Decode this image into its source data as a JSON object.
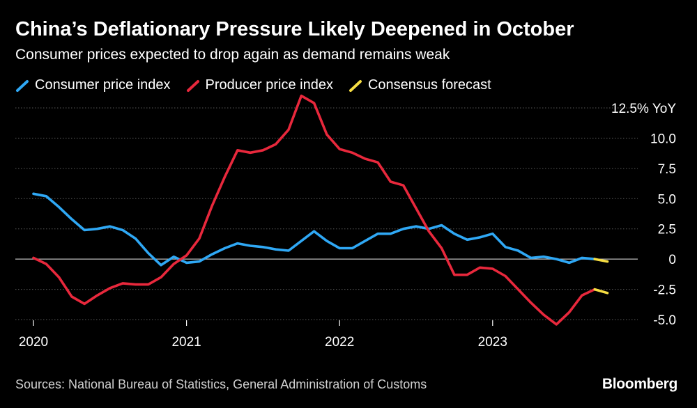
{
  "header": {
    "title": "China’s Deflationary Pressure Likely Deepened in October",
    "subtitle": "Consumer prices expected to drop again as demand remains weak"
  },
  "legend": [
    {
      "label": "Consumer price index",
      "color": "#2fa8f5"
    },
    {
      "label": "Producer price index",
      "color": "#e8283c"
    },
    {
      "label": "Consensus forecast",
      "color": "#f6dd43"
    }
  ],
  "footer": {
    "source": "Sources: National Bureau of Statistics, General Administration of Customs",
    "brand": "Bloomberg"
  },
  "chart_data": {
    "type": "line",
    "title": "China’s Deflationary Pressure Likely Deepened in October",
    "xlabel": "",
    "ylabel": "YoY",
    "ylim": [
      -5.0,
      12.5
    ],
    "yticks": [
      {
        "value": 12.5,
        "label": "12.5% YoY"
      },
      {
        "value": 10.0,
        "label": "10.0"
      },
      {
        "value": 7.5,
        "label": "7.5"
      },
      {
        "value": 5.0,
        "label": "5.0"
      },
      {
        "value": 2.5,
        "label": "2.5"
      },
      {
        "value": 0,
        "label": "0"
      },
      {
        "value": -2.5,
        "label": "-2.5"
      },
      {
        "value": -5.0,
        "label": "-5.0"
      }
    ],
    "xticks": [
      {
        "index": 0,
        "label": "2020"
      },
      {
        "index": 12,
        "label": "2021"
      },
      {
        "index": 24,
        "label": "2022"
      },
      {
        "index": 36,
        "label": "2023"
      }
    ],
    "x_start": "2020-01",
    "grid": true,
    "series": [
      {
        "name": "Consumer price index",
        "color": "#2fa8f5",
        "start_index": 0,
        "values": [
          5.4,
          5.2,
          4.3,
          3.3,
          2.4,
          2.5,
          2.7,
          2.4,
          1.7,
          0.5,
          -0.5,
          0.2,
          -0.3,
          -0.2,
          0.4,
          0.9,
          1.3,
          1.1,
          1.0,
          0.8,
          0.7,
          1.5,
          2.3,
          1.5,
          0.9,
          0.9,
          1.5,
          2.1,
          2.1,
          2.5,
          2.7,
          2.5,
          2.8,
          2.1,
          1.6,
          1.8,
          2.1,
          1.0,
          0.7,
          0.1,
          0.2,
          0.0,
          -0.3,
          0.1,
          0.0
        ]
      },
      {
        "name": "Producer price index",
        "color": "#e8283c",
        "start_index": 0,
        "values": [
          0.1,
          -0.4,
          -1.5,
          -3.1,
          -3.7,
          -3.0,
          -2.4,
          -2.0,
          -2.1,
          -2.1,
          -1.5,
          -0.4,
          0.3,
          1.7,
          4.4,
          6.8,
          9.0,
          8.8,
          9.0,
          9.5,
          10.7,
          13.5,
          12.9,
          10.3,
          9.1,
          8.8,
          8.3,
          8.0,
          6.4,
          6.1,
          4.2,
          2.3,
          0.9,
          -1.3,
          -1.3,
          -0.7,
          -0.8,
          -1.4,
          -2.5,
          -3.6,
          -4.6,
          -5.4,
          -4.4,
          -3.0,
          -2.5
        ]
      },
      {
        "name": "Consensus forecast",
        "color": "#f6dd43",
        "segments": [
          {
            "start_index": 44,
            "values": [
              0.0,
              -0.2
            ]
          },
          {
            "start_index": 44,
            "values": [
              -2.5,
              -2.8
            ]
          }
        ]
      }
    ]
  }
}
